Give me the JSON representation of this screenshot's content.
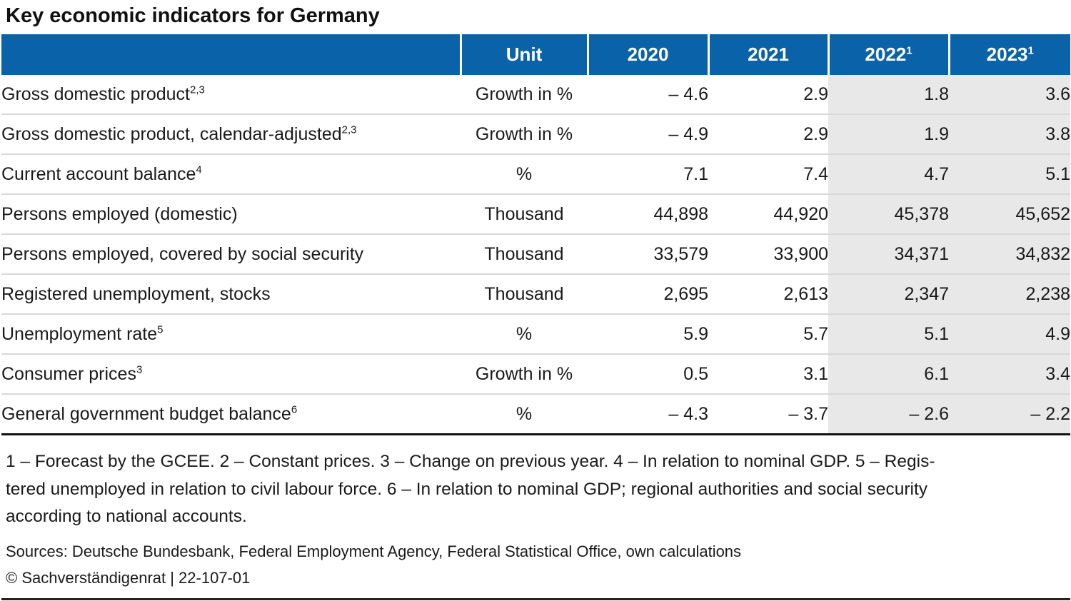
{
  "title": "Key economic indicators for Germany",
  "table": {
    "headers": [
      {
        "text": "",
        "sup": ""
      },
      {
        "text": "Unit",
        "sup": ""
      },
      {
        "text": "2020",
        "sup": ""
      },
      {
        "text": "2021",
        "sup": ""
      },
      {
        "text": "2022",
        "sup": "1"
      },
      {
        "text": "2023",
        "sup": "1"
      }
    ],
    "rows": [
      {
        "label": "Gross domestic product",
        "sup": "2,3",
        "unit": "Growth in %",
        "v2020": "– 4.6",
        "v2021": "2.9",
        "v2022": "1.8",
        "v2023": "3.6"
      },
      {
        "label": "Gross domestic product, calendar-adjusted",
        "sup": "2,3",
        "unit": "Growth in %",
        "v2020": "– 4.9",
        "v2021": "2.9",
        "v2022": "1.9",
        "v2023": "3.8"
      },
      {
        "label": "Current account balance",
        "sup": "4",
        "unit": "%",
        "v2020": "7.1",
        "v2021": "7.4",
        "v2022": "4.7",
        "v2023": "5.1"
      },
      {
        "label": "Persons employed (domestic)",
        "sup": "",
        "unit": "Thousand",
        "v2020": "44,898",
        "v2021": "44,920",
        "v2022": "45,378",
        "v2023": "45,652"
      },
      {
        "label": "Persons employed, covered by social security",
        "sup": "",
        "unit": "Thousand",
        "v2020": "33,579",
        "v2021": "33,900",
        "v2022": "34,371",
        "v2023": "34,832"
      },
      {
        "label": "Registered unemployment, stocks",
        "sup": "",
        "unit": "Thousand",
        "v2020": "2,695",
        "v2021": "2,613",
        "v2022": "2,347",
        "v2023": "2,238"
      },
      {
        "label": "Unemployment rate",
        "sup": "5",
        "unit": "%",
        "v2020": "5.9",
        "v2021": "5.7",
        "v2022": "5.1",
        "v2023": "4.9"
      },
      {
        "label": "Consumer prices",
        "sup": "3",
        "unit": "Growth in %",
        "v2020": "0.5",
        "v2021": "3.1",
        "v2022": "6.1",
        "v2023": "3.4"
      },
      {
        "label": "General government budget balance",
        "sup": "6",
        "unit": "%",
        "v2020": "– 4.3",
        "v2021": "– 3.7",
        "v2022": "– 2.6",
        "v2023": "– 2.2"
      }
    ]
  },
  "footnotes": {
    "line1": "1 – Forecast by the GCEE.  2 – Constant prices.  3 – Change on previous year.  4 – In relation to nominal GDP.  5 – Regis-",
    "line2": "tered unemployed in relation to civil labour force.  6 – In relation to nominal GDP; regional authorities and social security",
    "line3": "according to national accounts."
  },
  "sources": "Sources: Deutsche Bundesbank, Federal Employment Agency, Federal Statistical Office, own calculations",
  "copyright": "© Sachverständigenrat | 22-107-01",
  "colors": {
    "header_bg": "#0a63a8",
    "forecast_shade": "#e8e8e8"
  }
}
